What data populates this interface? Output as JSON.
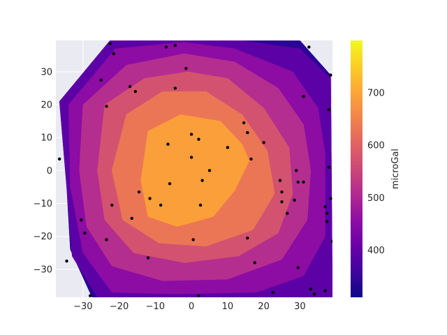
{
  "chart_data": {
    "type": "contour",
    "style": "seaborn-darkgrid",
    "title": "",
    "xlabel": "",
    "ylabel": "",
    "xlim": [
      -37.5,
      39
    ],
    "ylim": [
      -38.5,
      39.5
    ],
    "x_ticks": [
      -30,
      -20,
      -10,
      0,
      10,
      20,
      30
    ],
    "y_ticks": [
      -30,
      -20,
      -10,
      0,
      10,
      20,
      30
    ],
    "grid": true,
    "colorbar": {
      "label": "microGal",
      "range": [
        310,
        800
      ],
      "ticks": [
        400,
        500,
        600,
        700
      ],
      "colormap": "plasma"
    },
    "levels": [
      {
        "lower": 310,
        "upper": 360,
        "color": "#2a0694"
      },
      {
        "lower": 360,
        "upper": 420,
        "color": "#5c01a6"
      },
      {
        "lower": 420,
        "upper": 480,
        "color": "#8c0ca4"
      },
      {
        "lower": 480,
        "upper": 540,
        "color": "#b42e8f"
      },
      {
        "lower": 540,
        "upper": 600,
        "color": "#d35270"
      },
      {
        "lower": 600,
        "upper": 660,
        "color": "#eb7655"
      },
      {
        "lower": 660,
        "upper": 720,
        "color": "#fb9f3a"
      },
      {
        "lower": 720,
        "upper": 800,
        "color": "#f9d522"
      }
    ],
    "contours": [
      {
        "value": 310,
        "polygon": [
          [
            -36.5,
            21
          ],
          [
            -22.5,
            39.5
          ],
          [
            30,
            39.5
          ],
          [
            38.5,
            29
          ],
          [
            39,
            -38.5
          ],
          [
            -27.5,
            -38.5
          ],
          [
            -33.5,
            -24
          ],
          [
            -34.5,
            -5
          ]
        ]
      },
      {
        "value": 360,
        "polygon": [
          [
            -36.5,
            21
          ],
          [
            -22.5,
            39.5
          ],
          [
            14,
            39.5
          ],
          [
            30,
            37
          ],
          [
            38.5,
            28
          ],
          [
            39,
            -38.5
          ],
          [
            22,
            -38.5
          ],
          [
            -26,
            -38.5
          ],
          [
            -33,
            -26
          ],
          [
            -34.5,
            -5
          ]
        ]
      },
      {
        "value": 420,
        "polygon": [
          [
            -34,
            20
          ],
          [
            -21,
            37
          ],
          [
            -2,
            39
          ],
          [
            12,
            37
          ],
          [
            28,
            30
          ],
          [
            35,
            19
          ],
          [
            37,
            5
          ],
          [
            37,
            -20
          ],
          [
            31,
            -32
          ],
          [
            18,
            -37
          ],
          [
            -5,
            -37.5
          ],
          [
            -22,
            -37
          ],
          [
            -30,
            -25
          ],
          [
            -33.5,
            -5
          ]
        ]
      },
      {
        "value": 480,
        "polygon": [
          [
            -30,
            20
          ],
          [
            -18,
            32
          ],
          [
            -2,
            35.5
          ],
          [
            12,
            33
          ],
          [
            24,
            25
          ],
          [
            31,
            14
          ],
          [
            33,
            0
          ],
          [
            32,
            -15
          ],
          [
            25,
            -27
          ],
          [
            10,
            -33
          ],
          [
            -8,
            -33.5
          ],
          [
            -22,
            -29
          ],
          [
            -29,
            -17
          ],
          [
            -31,
            0
          ]
        ]
      },
      {
        "value": 540,
        "polygon": [
          [
            -24,
            20
          ],
          [
            -13,
            28
          ],
          [
            -1,
            30
          ],
          [
            10,
            28
          ],
          [
            20,
            19
          ],
          [
            27,
            7
          ],
          [
            28,
            -7
          ],
          [
            24,
            -19
          ],
          [
            13,
            -26
          ],
          [
            -2,
            -28
          ],
          [
            -16,
            -25
          ],
          [
            -24,
            -15
          ],
          [
            -26,
            0
          ]
        ]
      },
      {
        "value": 600,
        "polygon": [
          [
            -18,
            17
          ],
          [
            -8,
            24
          ],
          [
            4,
            24
          ],
          [
            14,
            17
          ],
          [
            21,
            6
          ],
          [
            23,
            -7
          ],
          [
            17,
            -18
          ],
          [
            4,
            -23
          ],
          [
            -9,
            -22
          ],
          [
            -19,
            -15
          ],
          [
            -22,
            0
          ]
        ]
      },
      {
        "value": 660,
        "polygon": [
          [
            -12,
            12
          ],
          [
            -3,
            17
          ],
          [
            8,
            15
          ],
          [
            14,
            8
          ],
          [
            16,
            3
          ],
          [
            12,
            -6
          ],
          [
            6,
            -14
          ],
          [
            -4,
            -17
          ],
          [
            -12,
            -14
          ],
          [
            -14,
            -3
          ]
        ]
      }
    ],
    "points": [
      [
        -22.5,
        38.5
      ],
      [
        -21.5,
        35.5
      ],
      [
        -7,
        37.5
      ],
      [
        -4.5,
        38
      ],
      [
        -1.5,
        31
      ],
      [
        -25,
        27.5
      ],
      [
        -17,
        25.5
      ],
      [
        -15.5,
        24
      ],
      [
        -23.5,
        19.5
      ],
      [
        -4.5,
        25
      ],
      [
        31,
        22.5
      ],
      [
        38,
        18.5
      ],
      [
        32.5,
        37.5
      ],
      [
        38.5,
        29
      ],
      [
        -36.5,
        3.5
      ],
      [
        0,
        11
      ],
      [
        2,
        9.5
      ],
      [
        -6.5,
        8
      ],
      [
        0,
        4
      ],
      [
        10,
        7
      ],
      [
        14.5,
        14.5
      ],
      [
        15.5,
        11.5
      ],
      [
        20,
        8.5
      ],
      [
        16.5,
        3.5
      ],
      [
        5,
        0
      ],
      [
        3,
        -3
      ],
      [
        -6,
        -4
      ],
      [
        -14.5,
        -6.5
      ],
      [
        -11.5,
        -8.5
      ],
      [
        -8.5,
        -10.5
      ],
      [
        2.5,
        -10.5
      ],
      [
        -22,
        -10.5
      ],
      [
        -16.5,
        -14.5
      ],
      [
        -30.5,
        -15
      ],
      [
        -29.5,
        -19
      ],
      [
        -23.5,
        -21
      ],
      [
        0.5,
        -21
      ],
      [
        15.5,
        -20.5
      ],
      [
        -12,
        -26.5
      ],
      [
        -34.5,
        -27.5
      ],
      [
        17.5,
        -28
      ],
      [
        29.5,
        -29.5
      ],
      [
        38,
        1
      ],
      [
        24.5,
        -3
      ],
      [
        25,
        -6.5
      ],
      [
        25,
        -9.5
      ],
      [
        26.5,
        -13
      ],
      [
        28.5,
        -9
      ],
      [
        29,
        0
      ],
      [
        31,
        -3.5
      ],
      [
        29.5,
        -3.5
      ],
      [
        37,
        -11
      ],
      [
        37.5,
        -13
      ],
      [
        37.5,
        -15.5
      ],
      [
        38.5,
        -8.5
      ],
      [
        39,
        -21.5
      ],
      [
        -28,
        -38
      ],
      [
        22.5,
        -37
      ],
      [
        33,
        -36
      ],
      [
        34,
        -37.5
      ],
      [
        37,
        -36.5
      ],
      [
        2,
        -38
      ]
    ]
  }
}
